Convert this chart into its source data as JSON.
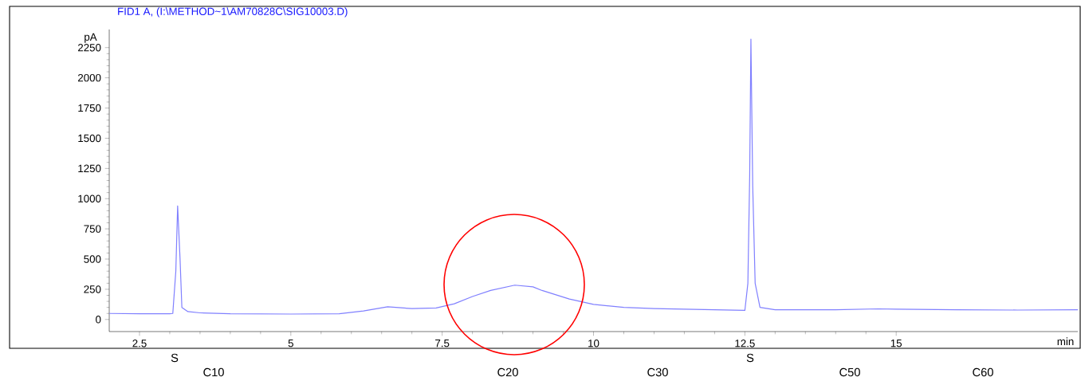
{
  "chart_data": {
    "type": "line",
    "title": "FID1 A,  (I:\\METHOD~1\\AM70828C\\SIG10003.D)",
    "xlabel": "min",
    "ylabel": "pA",
    "x": [
      2.0,
      2.5,
      3.0,
      3.05,
      3.1,
      3.13,
      3.17,
      3.2,
      3.3,
      3.5,
      4.0,
      5.0,
      5.8,
      6.2,
      6.6,
      7.0,
      7.4,
      7.7,
      8.0,
      8.3,
      8.7,
      9.0,
      9.15,
      9.6,
      10.0,
      10.5,
      11.0,
      12.0,
      12.5,
      12.55,
      12.58,
      12.6,
      12.63,
      12.67,
      12.75,
      13.0,
      14.0,
      14.7,
      15.0,
      16.0,
      17.0,
      18.0
    ],
    "series": [
      {
        "color": "#8080ff",
        "values": [
          50,
          48,
          47,
          50,
          400,
          940,
          500,
          100,
          65,
          55,
          47,
          45,
          48,
          70,
          105,
          90,
          95,
          130,
          190,
          240,
          284,
          270,
          240,
          170,
          125,
          100,
          90,
          80,
          75,
          300,
          1200,
          2320,
          1100,
          300,
          100,
          80,
          80,
          88,
          85,
          80,
          78,
          80
        ]
      }
    ],
    "xlim": [
      2,
      18
    ],
    "ylim": [
      -100,
      2400
    ],
    "xticks": [
      2.5,
      5,
      7.5,
      10,
      12.5,
      15
    ],
    "yticks": [
      0,
      250,
      500,
      750,
      1000,
      1250,
      1500,
      1750,
      2000,
      2250
    ],
    "grid": false,
    "marker": "none",
    "line_style": "solid",
    "annotations": [
      "S",
      "S",
      "C10",
      "C20",
      "C30",
      "C50",
      "C60"
    ]
  }
}
